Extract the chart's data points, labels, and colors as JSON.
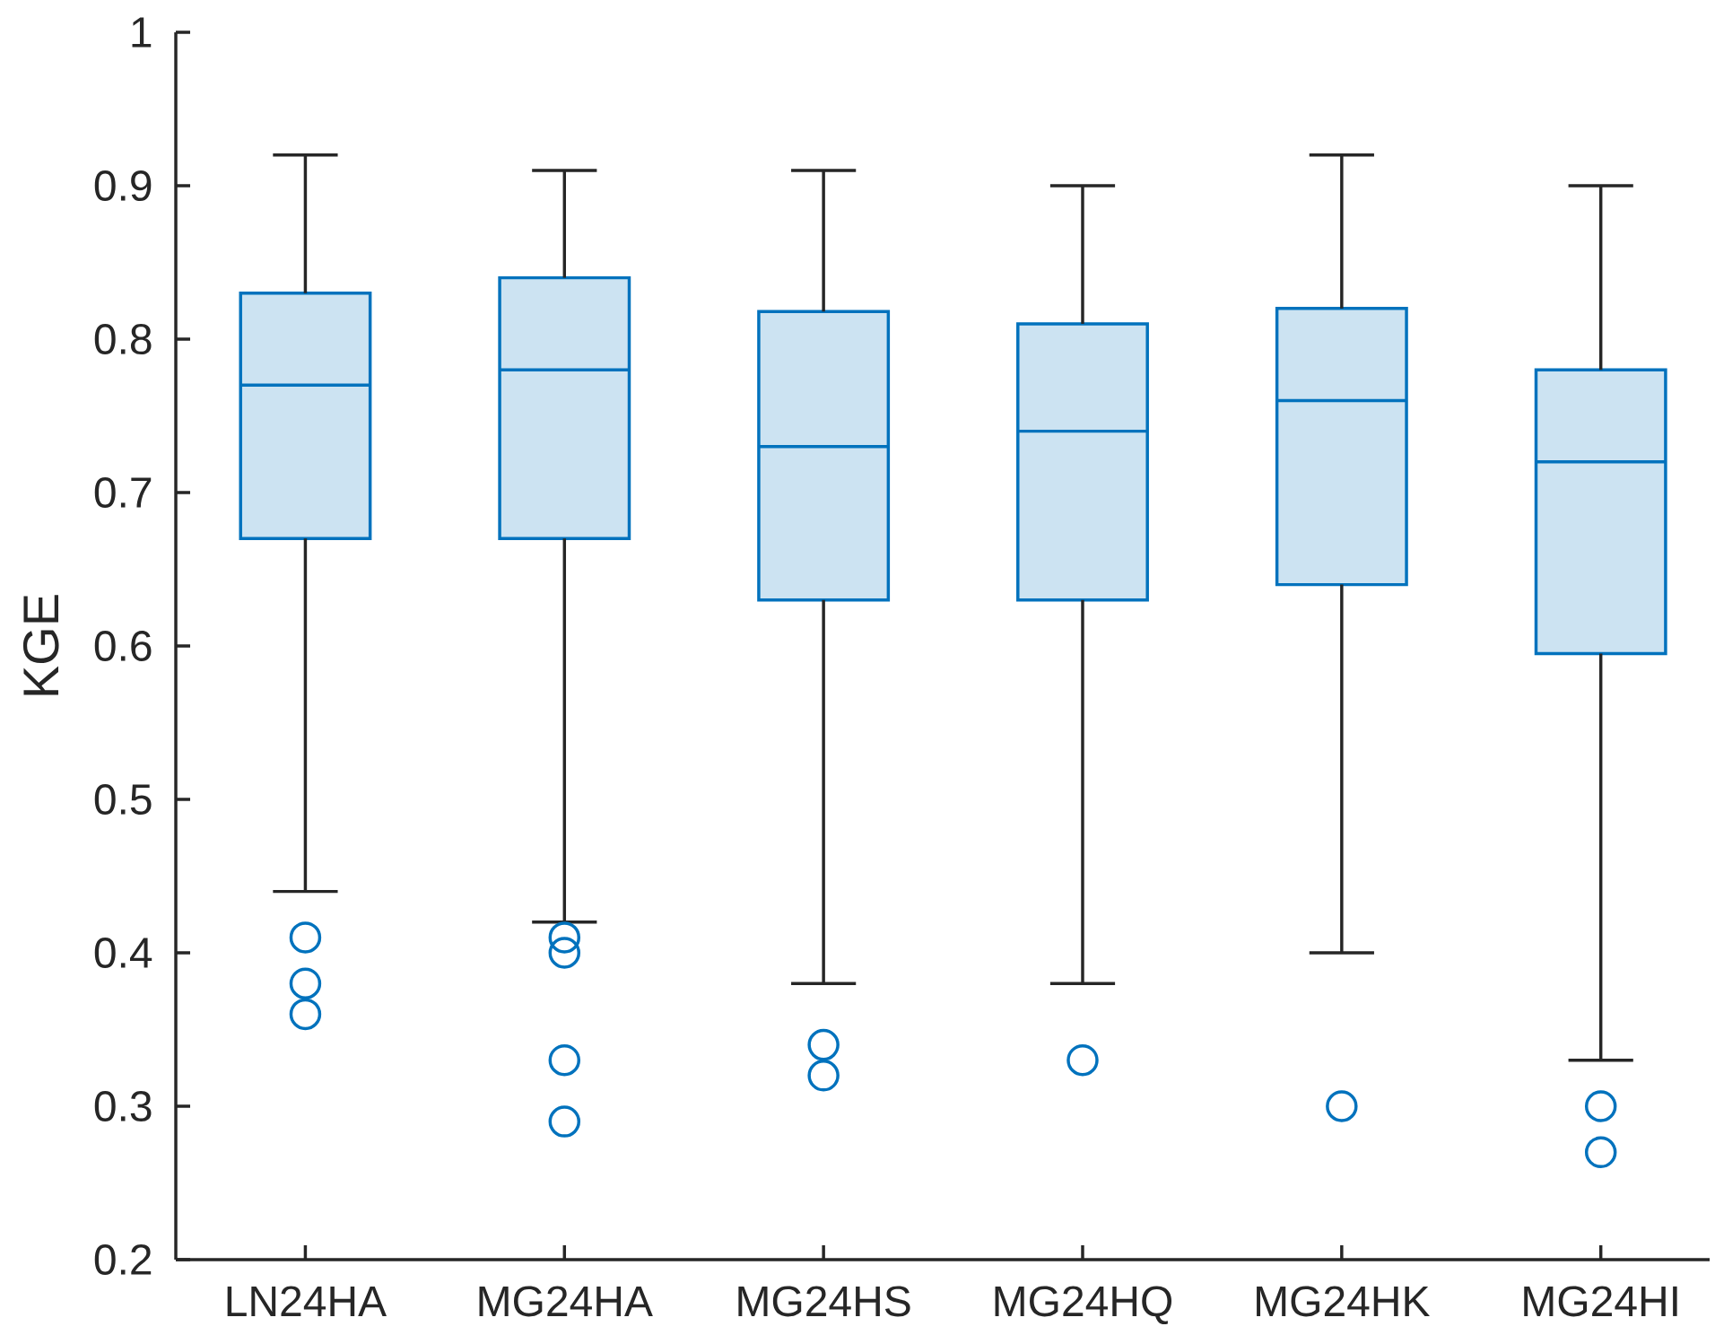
{
  "chart_data": {
    "type": "box",
    "ylabel": "KGE",
    "categories": [
      "LN24HA",
      "MG24HA",
      "MG24HS",
      "MG24HQ",
      "MG24HK",
      "MG24HI"
    ],
    "ylim": [
      0.2,
      1
    ],
    "yticks": [
      0.2,
      0.3,
      0.4,
      0.5,
      0.6,
      0.7,
      0.8,
      0.9,
      1
    ],
    "color": "#0072bd",
    "marker": "circle",
    "boxes": [
      {
        "low": 0.44,
        "q1": 0.67,
        "median": 0.77,
        "q3": 0.83,
        "high": 0.92,
        "outliers": [
          0.41,
          0.38,
          0.36
        ]
      },
      {
        "low": 0.42,
        "q1": 0.67,
        "median": 0.78,
        "q3": 0.84,
        "high": 0.91,
        "outliers": [
          0.41,
          0.4,
          0.33,
          0.29
        ]
      },
      {
        "low": 0.38,
        "q1": 0.63,
        "median": 0.73,
        "q3": 0.818,
        "high": 0.91,
        "outliers": [
          0.34,
          0.32
        ]
      },
      {
        "low": 0.38,
        "q1": 0.63,
        "median": 0.74,
        "q3": 0.81,
        "high": 0.9,
        "outliers": [
          0.33
        ]
      },
      {
        "low": 0.4,
        "q1": 0.64,
        "median": 0.76,
        "q3": 0.82,
        "high": 0.92,
        "outliers": [
          0.3
        ]
      },
      {
        "low": 0.33,
        "q1": 0.595,
        "median": 0.72,
        "q3": 0.78,
        "high": 0.9,
        "outliers": [
          0.3,
          0.27
        ]
      }
    ]
  }
}
